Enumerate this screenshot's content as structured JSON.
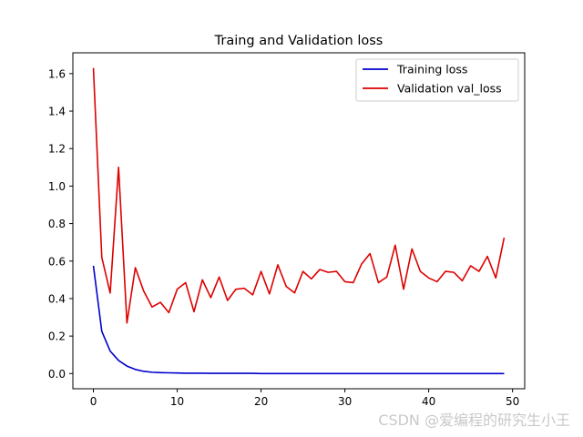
{
  "chart_data": {
    "type": "line",
    "title": "Traing and Validation loss",
    "xlabel": "",
    "ylabel": "",
    "xlim": [
      -2.45,
      51.45
    ],
    "ylim": [
      -0.081,
      1.711
    ],
    "xticks": [
      0,
      10,
      20,
      30,
      40,
      50
    ],
    "xtick_labels": [
      "0",
      "10",
      "20",
      "30",
      "40",
      "50"
    ],
    "yticks": [
      0.0,
      0.2,
      0.4,
      0.6,
      0.8,
      1.0,
      1.2,
      1.4,
      1.6
    ],
    "ytick_labels": [
      "0.0",
      "0.2",
      "0.4",
      "0.6",
      "0.8",
      "1.0",
      "1.2",
      "1.4",
      "1.6"
    ],
    "grid": false,
    "legend_position": "top-right",
    "x": [
      0,
      1,
      2,
      3,
      4,
      5,
      6,
      7,
      8,
      9,
      10,
      11,
      12,
      13,
      14,
      15,
      16,
      17,
      18,
      19,
      20,
      21,
      22,
      23,
      24,
      25,
      26,
      27,
      28,
      29,
      30,
      31,
      32,
      33,
      34,
      35,
      36,
      37,
      38,
      39,
      40,
      41,
      42,
      43,
      44,
      45,
      46,
      47,
      48,
      49
    ],
    "series": [
      {
        "name": "Training loss",
        "color": "#0000cc",
        "values": [
          0.575,
          0.225,
          0.12,
          0.07,
          0.04,
          0.022,
          0.012,
          0.007,
          0.005,
          0.004,
          0.003,
          0.002,
          0.002,
          0.002,
          0.001,
          0.001,
          0.001,
          0.001,
          0.001,
          0.001,
          0.0,
          0.0,
          0.0,
          0.0,
          0.0,
          0.0,
          0.0,
          0.0,
          0.0,
          0.0,
          0.0,
          0.0,
          0.0,
          0.0,
          0.0,
          0.0,
          0.0,
          0.0,
          0.0,
          0.0,
          0.0,
          0.0,
          0.0,
          0.0,
          0.0,
          0.0,
          0.0,
          0.0,
          0.0,
          0.0
        ]
      },
      {
        "name": "Validation val_loss",
        "color": "#dd0000",
        "values": [
          1.63,
          0.62,
          0.43,
          1.1,
          0.27,
          0.565,
          0.44,
          0.355,
          0.38,
          0.325,
          0.45,
          0.485,
          0.33,
          0.5,
          0.405,
          0.515,
          0.39,
          0.45,
          0.455,
          0.42,
          0.545,
          0.425,
          0.58,
          0.465,
          0.43,
          0.545,
          0.505,
          0.555,
          0.54,
          0.545,
          0.49,
          0.485,
          0.585,
          0.64,
          0.485,
          0.515,
          0.685,
          0.45,
          0.665,
          0.545,
          0.51,
          0.49,
          0.545,
          0.54,
          0.495,
          0.575,
          0.545,
          0.625,
          0.51,
          0.725
        ]
      }
    ]
  },
  "watermark": "CSDN @爱编程的研究生小王"
}
